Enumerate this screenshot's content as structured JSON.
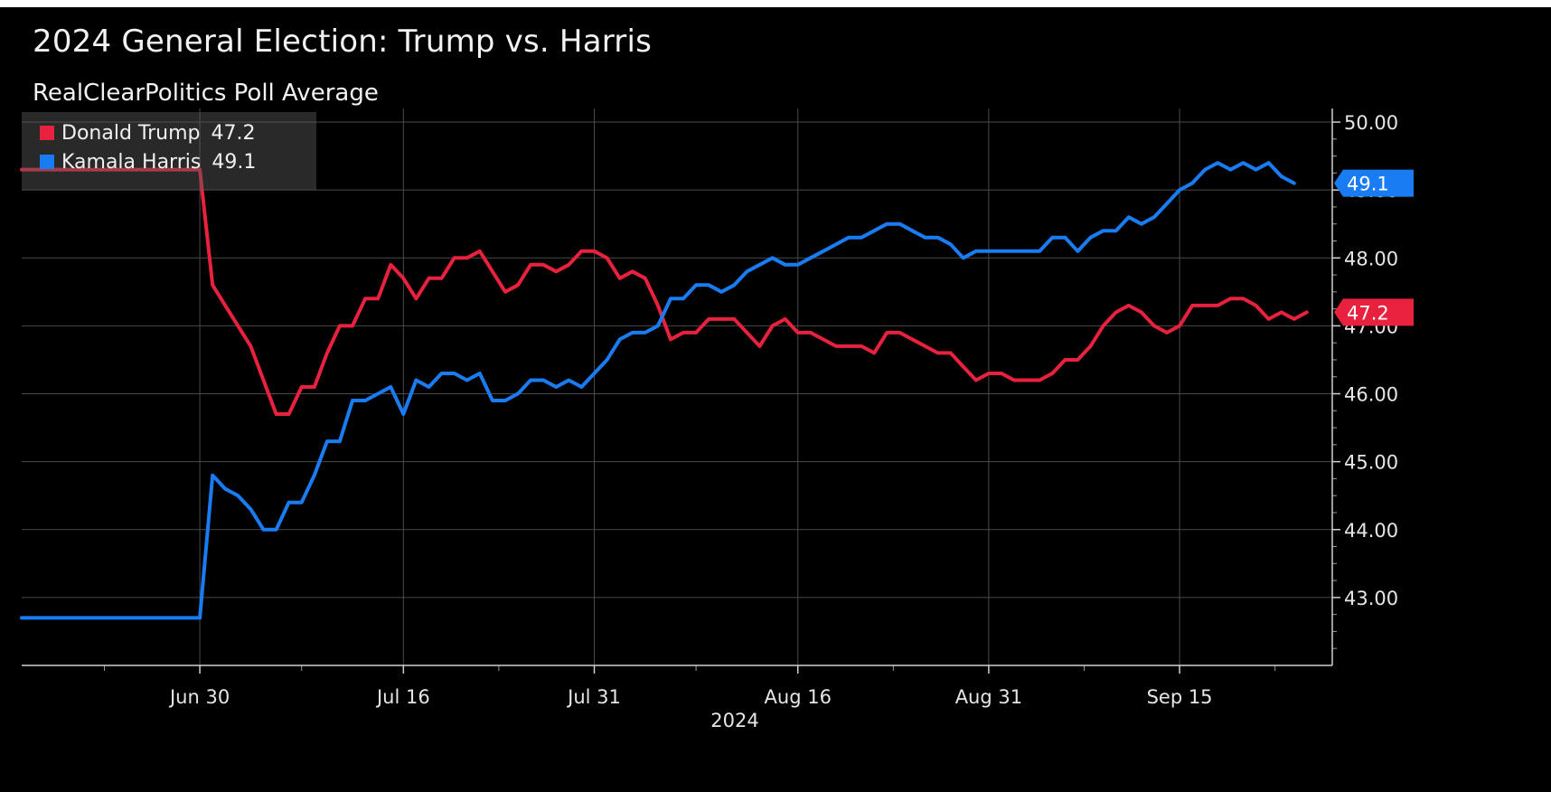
{
  "chart_data": {
    "type": "line",
    "title": "2024 General Election: Trump vs. Harris",
    "subtitle": "RealClearPolitics Poll Average",
    "xlabel": "2024",
    "x_tick_labels": [
      "Jun 30",
      "Jul 16",
      "Jul 31",
      "Aug 16",
      "Aug 31",
      "Sep 15"
    ],
    "x_tick_dates": [
      "2024-06-30",
      "2024-07-16",
      "2024-07-31",
      "2024-08-16",
      "2024-08-31",
      "2024-09-15"
    ],
    "xlim": [
      "2024-06-16",
      "2024-09-27"
    ],
    "ylim": [
      42.0,
      50.2
    ],
    "y_ticks": [
      43,
      44,
      45,
      46,
      47,
      48,
      49,
      50
    ],
    "y_tick_labels": [
      "43.00",
      "44.00",
      "45.00",
      "46.00",
      "47.00",
      "48.00",
      "49.00",
      "50.00"
    ],
    "y_axis_position": "right",
    "grid": true,
    "legend_position": "top-left",
    "series": [
      {
        "name": "Donald Trump",
        "last_value_label": "47.2",
        "color": "#e8213f",
        "points": [
          [
            "2024-06-16",
            49.3
          ],
          [
            "2024-06-30",
            49.3
          ],
          [
            "2024-07-01",
            47.6
          ],
          [
            "2024-07-02",
            47.3
          ],
          [
            "2024-07-03",
            47.0
          ],
          [
            "2024-07-04",
            46.7
          ],
          [
            "2024-07-05",
            46.2
          ],
          [
            "2024-07-06",
            45.7
          ],
          [
            "2024-07-07",
            45.7
          ],
          [
            "2024-07-08",
            46.1
          ],
          [
            "2024-07-09",
            46.1
          ],
          [
            "2024-07-10",
            46.6
          ],
          [
            "2024-07-11",
            47.0
          ],
          [
            "2024-07-12",
            47.0
          ],
          [
            "2024-07-13",
            47.4
          ],
          [
            "2024-07-14",
            47.4
          ],
          [
            "2024-07-15",
            47.9
          ],
          [
            "2024-07-16",
            47.7
          ],
          [
            "2024-07-17",
            47.4
          ],
          [
            "2024-07-18",
            47.7
          ],
          [
            "2024-07-19",
            47.7
          ],
          [
            "2024-07-20",
            48.0
          ],
          [
            "2024-07-21",
            48.0
          ],
          [
            "2024-07-22",
            48.1
          ],
          [
            "2024-07-23",
            47.8
          ],
          [
            "2024-07-24",
            47.5
          ],
          [
            "2024-07-25",
            47.6
          ],
          [
            "2024-07-26",
            47.9
          ],
          [
            "2024-07-27",
            47.9
          ],
          [
            "2024-07-28",
            47.8
          ],
          [
            "2024-07-29",
            47.9
          ],
          [
            "2024-07-30",
            48.1
          ],
          [
            "2024-07-31",
            48.1
          ],
          [
            "2024-08-01",
            48.0
          ],
          [
            "2024-08-02",
            47.7
          ],
          [
            "2024-08-03",
            47.8
          ],
          [
            "2024-08-04",
            47.7
          ],
          [
            "2024-08-05",
            47.3
          ],
          [
            "2024-08-06",
            46.8
          ],
          [
            "2024-08-07",
            46.9
          ],
          [
            "2024-08-08",
            46.9
          ],
          [
            "2024-08-09",
            47.1
          ],
          [
            "2024-08-10",
            47.1
          ],
          [
            "2024-08-11",
            47.1
          ],
          [
            "2024-08-12",
            46.9
          ],
          [
            "2024-08-13",
            46.7
          ],
          [
            "2024-08-14",
            47.0
          ],
          [
            "2024-08-15",
            47.1
          ],
          [
            "2024-08-16",
            46.9
          ],
          [
            "2024-08-17",
            46.9
          ],
          [
            "2024-08-18",
            46.8
          ],
          [
            "2024-08-19",
            46.7
          ],
          [
            "2024-08-20",
            46.7
          ],
          [
            "2024-08-21",
            46.7
          ],
          [
            "2024-08-22",
            46.6
          ],
          [
            "2024-08-23",
            46.9
          ],
          [
            "2024-08-24",
            46.9
          ],
          [
            "2024-08-25",
            46.8
          ],
          [
            "2024-08-26",
            46.7
          ],
          [
            "2024-08-27",
            46.6
          ],
          [
            "2024-08-28",
            46.6
          ],
          [
            "2024-08-29",
            46.4
          ],
          [
            "2024-08-30",
            46.2
          ],
          [
            "2024-08-31",
            46.3
          ],
          [
            "2024-09-01",
            46.3
          ],
          [
            "2024-09-02",
            46.2
          ],
          [
            "2024-09-03",
            46.2
          ],
          [
            "2024-09-04",
            46.2
          ],
          [
            "2024-09-05",
            46.3
          ],
          [
            "2024-09-06",
            46.5
          ],
          [
            "2024-09-07",
            46.5
          ],
          [
            "2024-09-08",
            46.7
          ],
          [
            "2024-09-09",
            47.0
          ],
          [
            "2024-09-10",
            47.2
          ],
          [
            "2024-09-11",
            47.3
          ],
          [
            "2024-09-12",
            47.2
          ],
          [
            "2024-09-13",
            47.0
          ],
          [
            "2024-09-14",
            46.9
          ],
          [
            "2024-09-15",
            47.0
          ],
          [
            "2024-09-16",
            47.3
          ],
          [
            "2024-09-17",
            47.3
          ],
          [
            "2024-09-18",
            47.3
          ],
          [
            "2024-09-19",
            47.4
          ],
          [
            "2024-09-20",
            47.4
          ],
          [
            "2024-09-21",
            47.3
          ],
          [
            "2024-09-22",
            47.1
          ],
          [
            "2024-09-23",
            47.2
          ],
          [
            "2024-09-24",
            47.1
          ],
          [
            "2024-09-25",
            47.2
          ]
        ]
      },
      {
        "name": "Kamala Harris",
        "last_value_label": "49.1",
        "color": "#1a7cf2",
        "points": [
          [
            "2024-06-16",
            42.7
          ],
          [
            "2024-06-30",
            42.7
          ],
          [
            "2024-07-01",
            44.8
          ],
          [
            "2024-07-02",
            44.6
          ],
          [
            "2024-07-03",
            44.5
          ],
          [
            "2024-07-04",
            44.3
          ],
          [
            "2024-07-05",
            44.0
          ],
          [
            "2024-07-06",
            44.0
          ],
          [
            "2024-07-07",
            44.4
          ],
          [
            "2024-07-08",
            44.4
          ],
          [
            "2024-07-09",
            44.8
          ],
          [
            "2024-07-10",
            45.3
          ],
          [
            "2024-07-11",
            45.3
          ],
          [
            "2024-07-12",
            45.9
          ],
          [
            "2024-07-13",
            45.9
          ],
          [
            "2024-07-14",
            46.0
          ],
          [
            "2024-07-15",
            46.1
          ],
          [
            "2024-07-16",
            45.7
          ],
          [
            "2024-07-17",
            46.2
          ],
          [
            "2024-07-18",
            46.1
          ],
          [
            "2024-07-19",
            46.3
          ],
          [
            "2024-07-20",
            46.3
          ],
          [
            "2024-07-21",
            46.2
          ],
          [
            "2024-07-22",
            46.3
          ],
          [
            "2024-07-23",
            45.9
          ],
          [
            "2024-07-24",
            45.9
          ],
          [
            "2024-07-25",
            46.0
          ],
          [
            "2024-07-26",
            46.2
          ],
          [
            "2024-07-27",
            46.2
          ],
          [
            "2024-07-28",
            46.1
          ],
          [
            "2024-07-29",
            46.2
          ],
          [
            "2024-07-30",
            46.1
          ],
          [
            "2024-07-31",
            46.3
          ],
          [
            "2024-08-01",
            46.5
          ],
          [
            "2024-08-02",
            46.8
          ],
          [
            "2024-08-03",
            46.9
          ],
          [
            "2024-08-04",
            46.9
          ],
          [
            "2024-08-05",
            47.0
          ],
          [
            "2024-08-06",
            47.4
          ],
          [
            "2024-08-07",
            47.4
          ],
          [
            "2024-08-08",
            47.6
          ],
          [
            "2024-08-09",
            47.6
          ],
          [
            "2024-08-10",
            47.5
          ],
          [
            "2024-08-11",
            47.6
          ],
          [
            "2024-08-12",
            47.8
          ],
          [
            "2024-08-13",
            47.9
          ],
          [
            "2024-08-14",
            48.0
          ],
          [
            "2024-08-15",
            47.9
          ],
          [
            "2024-08-16",
            47.9
          ],
          [
            "2024-08-17",
            48.0
          ],
          [
            "2024-08-18",
            48.1
          ],
          [
            "2024-08-19",
            48.2
          ],
          [
            "2024-08-20",
            48.3
          ],
          [
            "2024-08-21",
            48.3
          ],
          [
            "2024-08-22",
            48.4
          ],
          [
            "2024-08-23",
            48.5
          ],
          [
            "2024-08-24",
            48.5
          ],
          [
            "2024-08-25",
            48.4
          ],
          [
            "2024-08-26",
            48.3
          ],
          [
            "2024-08-27",
            48.3
          ],
          [
            "2024-08-28",
            48.2
          ],
          [
            "2024-08-29",
            48.0
          ],
          [
            "2024-08-30",
            48.1
          ],
          [
            "2024-08-31",
            48.1
          ],
          [
            "2024-09-01",
            48.1
          ],
          [
            "2024-09-02",
            48.1
          ],
          [
            "2024-09-03",
            48.1
          ],
          [
            "2024-09-04",
            48.1
          ],
          [
            "2024-09-05",
            48.3
          ],
          [
            "2024-09-06",
            48.3
          ],
          [
            "2024-09-07",
            48.1
          ],
          [
            "2024-09-08",
            48.3
          ],
          [
            "2024-09-09",
            48.4
          ],
          [
            "2024-09-10",
            48.4
          ],
          [
            "2024-09-11",
            48.6
          ],
          [
            "2024-09-12",
            48.5
          ],
          [
            "2024-09-13",
            48.6
          ],
          [
            "2024-09-14",
            48.8
          ],
          [
            "2024-09-15",
            49.0
          ],
          [
            "2024-09-16",
            49.1
          ],
          [
            "2024-09-17",
            49.3
          ],
          [
            "2024-09-18",
            49.4
          ],
          [
            "2024-09-19",
            49.3
          ],
          [
            "2024-09-20",
            49.4
          ],
          [
            "2024-09-21",
            49.3
          ],
          [
            "2024-09-22",
            49.4
          ],
          [
            "2024-09-23",
            49.2
          ],
          [
            "2024-09-24",
            49.1
          ]
        ]
      }
    ]
  }
}
